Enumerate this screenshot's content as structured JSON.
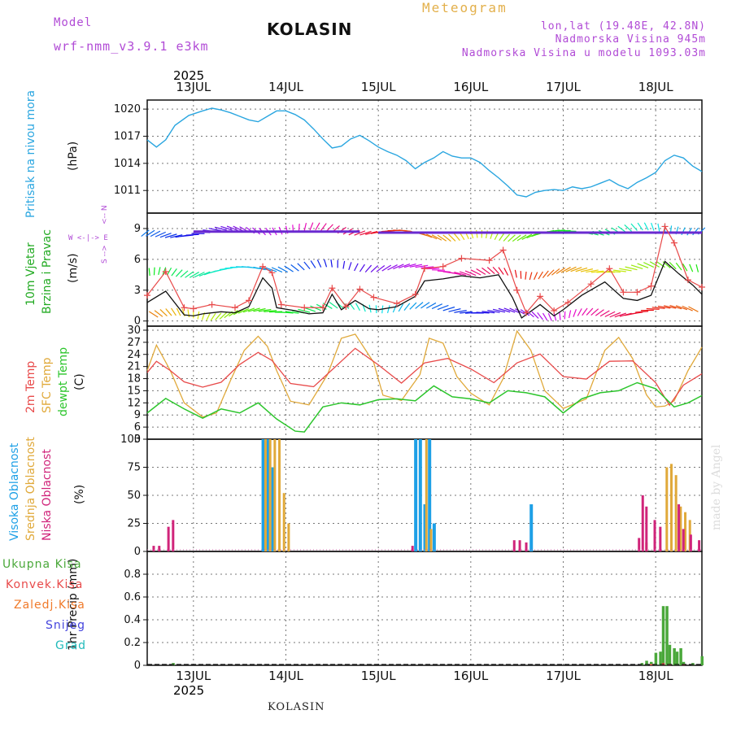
{
  "header": {
    "model_label": "Model",
    "model_name": "wrf-nmm_v3.9.1 e3km",
    "station": "KOLASIN",
    "meteogram": "Meteogram",
    "lonlat": "lon,lat (19.48E, 42.8N)",
    "altitude": "Nadmorska Visina 945m",
    "model_altitude": "Nadmorska Visina u modelu 1093.03m",
    "year_top": "2025",
    "year_bottom": "2025",
    "footer_station": "KOLASIN",
    "credit": "made by Angel"
  },
  "colors": {
    "pressure": "#2aa6e0",
    "wind_label": "#22aa22",
    "gust": "#e84a4a",
    "temp2m": "#e84a4a",
    "sfc": "#e0a93a",
    "dewpt": "#2cc52c",
    "high_cloud": "#1ea0e6",
    "mid_cloud": "#e0a93a",
    "low_cloud": "#d0247a",
    "total_precip": "#4aa83a",
    "convective": "#e84a4a",
    "frozen": "#f07a2a",
    "snow": "#4444dd",
    "hail": "#22bbbb",
    "violet": "#b14bd6"
  },
  "chart_data": [
    {
      "type": "line",
      "title": "Pritisak na nivou mora",
      "ylabel": "(hPa)",
      "ylim": [
        1008.5,
        1021
      ],
      "yticks": [
        1011,
        1014,
        1017,
        1020
      ],
      "x_range_days": [
        12.5,
        18.5
      ],
      "x_tick_labels": [
        "13JUL",
        "14JUL",
        "15JUL",
        "16JUL",
        "17JUL",
        "18JUL"
      ],
      "series": [
        {
          "name": "pressure",
          "x": [
            12.5,
            12.6,
            12.7,
            12.8,
            12.95,
            13.1,
            13.2,
            13.3,
            13.4,
            13.5,
            13.6,
            13.7,
            13.8,
            13.9,
            14.0,
            14.1,
            14.2,
            14.3,
            14.4,
            14.5,
            14.6,
            14.7,
            14.8,
            14.9,
            15.0,
            15.1,
            15.2,
            15.3,
            15.4,
            15.5,
            15.6,
            15.7,
            15.8,
            15.9,
            16.0,
            16.1,
            16.2,
            16.3,
            16.4,
            16.5,
            16.6,
            16.7,
            16.8,
            16.9,
            17.0,
            17.1,
            17.2,
            17.3,
            17.4,
            17.5,
            17.6,
            17.7,
            17.8,
            17.9,
            18.0,
            18.1,
            18.2,
            18.3,
            18.4,
            18.5
          ],
          "values": [
            1016.6,
            1015.8,
            1016.6,
            1018.2,
            1019.3,
            1019.8,
            1020.1,
            1019.9,
            1019.6,
            1019.2,
            1018.8,
            1018.6,
            1019.2,
            1019.8,
            1019.8,
            1019.4,
            1018.8,
            1017.8,
            1016.7,
            1015.7,
            1015.9,
            1016.7,
            1017.1,
            1016.5,
            1015.8,
            1015.3,
            1014.9,
            1014.3,
            1013.4,
            1014.1,
            1014.6,
            1015.3,
            1014.8,
            1014.6,
            1014.6,
            1014.1,
            1013.2,
            1012.4,
            1011.5,
            1010.5,
            1010.3,
            1010.8,
            1011.0,
            1011.1,
            1011.0,
            1011.4,
            1011.2,
            1011.4,
            1011.8,
            1012.2,
            1011.6,
            1011.2,
            1011.9,
            1012.4,
            1013.0,
            1014.3,
            1014.9,
            1014.6,
            1013.7,
            1013.1
          ]
        }
      ]
    },
    {
      "type": "line",
      "title": "10m Vjetar Brzina i Pravac",
      "ylabel": "(m/s)",
      "ylim": [
        -0.5,
        10.5
      ],
      "yticks": [
        0,
        3,
        6,
        9
      ],
      "compass": {
        "north": "N",
        "south": "S",
        "west": "W",
        "east": "E"
      },
      "series": [
        {
          "name": "wind_speed",
          "x": [
            12.5,
            12.7,
            12.9,
            13.0,
            13.1,
            13.3,
            13.45,
            13.6,
            13.75,
            13.85,
            13.9,
            14.1,
            14.25,
            14.4,
            14.5,
            14.6,
            14.75,
            14.9,
            15.0,
            15.2,
            15.4,
            15.5,
            15.7,
            15.9,
            16.1,
            16.3,
            16.45,
            16.55,
            16.75,
            16.9,
            17.0,
            17.2,
            17.45,
            17.65,
            17.8,
            17.95,
            18.1,
            18.25,
            18.4,
            18.5
          ],
          "values": [
            1.8,
            2.9,
            0.6,
            0.5,
            0.7,
            0.9,
            0.8,
            1.4,
            4.2,
            3.2,
            1.3,
            1.0,
            0.7,
            0.8,
            2.6,
            1.1,
            2.0,
            1.2,
            1.1,
            1.4,
            2.4,
            3.9,
            4.1,
            4.4,
            4.2,
            4.5,
            2.3,
            0.3,
            1.6,
            0.5,
            1.1,
            2.5,
            3.8,
            2.2,
            2.0,
            2.5,
            5.8,
            4.6,
            3.5,
            2.6
          ]
        },
        {
          "name": "gust",
          "x": [
            12.5,
            12.7,
            12.9,
            13.0,
            13.2,
            13.45,
            13.6,
            13.75,
            13.85,
            13.95,
            14.2,
            14.4,
            14.5,
            14.65,
            14.8,
            14.95,
            15.2,
            15.4,
            15.5,
            15.7,
            15.9,
            16.2,
            16.35,
            16.5,
            16.6,
            16.75,
            16.9,
            17.05,
            17.3,
            17.5,
            17.65,
            17.8,
            17.95,
            18.1,
            18.2,
            18.35,
            18.5
          ],
          "values": [
            2.5,
            4.8,
            1.3,
            1.2,
            1.6,
            1.3,
            2.0,
            5.3,
            4.7,
            1.6,
            1.3,
            1.3,
            3.2,
            1.4,
            3.1,
            2.3,
            1.7,
            2.6,
            5.1,
            5.3,
            6.1,
            5.9,
            6.9,
            3.0,
            0.8,
            2.4,
            1.0,
            1.8,
            3.6,
            5.1,
            2.8,
            2.8,
            3.4,
            9.2,
            7.6,
            4.0,
            3.3
          ]
        }
      ]
    },
    {
      "type": "line",
      "title": "2m Temp / SFC Temp / dewpt Temp",
      "ylabel": "(C)",
      "ylim": [
        3,
        31
      ],
      "yticks": [
        3,
        6,
        9,
        12,
        15,
        18,
        21,
        24,
        27,
        30
      ],
      "series": [
        {
          "name": "2m Temp",
          "x": [
            12.5,
            12.6,
            12.75,
            12.9,
            13.1,
            13.3,
            13.5,
            13.7,
            13.85,
            14.05,
            14.3,
            14.5,
            14.75,
            15.0,
            15.25,
            15.5,
            15.75,
            16.0,
            16.25,
            16.5,
            16.75,
            17.0,
            17.25,
            17.5,
            17.75,
            18.0,
            18.15,
            18.3,
            18.5
          ],
          "values": [
            19.5,
            22.3,
            20.0,
            17.2,
            15.9,
            17.1,
            21.5,
            24.5,
            22.5,
            16.8,
            16.0,
            20.2,
            25.5,
            21.4,
            16.9,
            21.9,
            23.0,
            20.4,
            17.0,
            21.9,
            24.1,
            18.5,
            17.9,
            22.3,
            22.4,
            17.0,
            11.4,
            16.4,
            19.2
          ]
        },
        {
          "name": "SFC Temp",
          "x": [
            12.5,
            12.6,
            12.75,
            12.9,
            13.1,
            13.25,
            13.4,
            13.55,
            13.7,
            13.8,
            13.9,
            14.05,
            14.25,
            14.45,
            14.6,
            14.75,
            14.95,
            15.05,
            15.25,
            15.45,
            15.55,
            15.7,
            15.85,
            16.0,
            16.2,
            16.35,
            16.5,
            16.65,
            16.8,
            17.0,
            17.25,
            17.45,
            17.6,
            17.75,
            17.9,
            18.0,
            18.1,
            18.2,
            18.35,
            18.5
          ],
          "values": [
            20.0,
            26.3,
            20.0,
            12.0,
            8.5,
            9.5,
            17.5,
            25.0,
            28.5,
            26.0,
            20.0,
            12.4,
            11.5,
            19.0,
            28.0,
            29.0,
            22.0,
            13.9,
            12.6,
            19.0,
            28.0,
            26.8,
            18.5,
            14.4,
            11.5,
            18.0,
            29.8,
            25.0,
            15.0,
            10.6,
            13.0,
            25.0,
            28.2,
            23.0,
            14.0,
            11.0,
            11.2,
            12.5,
            20.0,
            25.8
          ]
        },
        {
          "name": "dewpt Temp",
          "x": [
            12.5,
            12.7,
            12.9,
            13.1,
            13.3,
            13.5,
            13.7,
            13.9,
            14.1,
            14.2,
            14.4,
            14.6,
            14.8,
            15.0,
            15.2,
            15.4,
            15.6,
            15.8,
            16.0,
            16.2,
            16.4,
            16.6,
            16.8,
            17.0,
            17.2,
            17.4,
            17.6,
            17.8,
            18.0,
            18.2,
            18.35,
            18.5
          ],
          "values": [
            9.5,
            13.1,
            10.5,
            8.2,
            10.5,
            9.5,
            12.0,
            8.0,
            5.0,
            4.8,
            11.0,
            12.0,
            11.5,
            12.8,
            13.0,
            12.5,
            16.2,
            13.5,
            13.0,
            12.0,
            15.0,
            14.5,
            13.5,
            9.5,
            13.0,
            14.5,
            15.0,
            17.0,
            15.5,
            11.0,
            12.0,
            13.8
          ]
        }
      ]
    },
    {
      "type": "bar",
      "title": "Visoka / Srednja / Niska Oblacnost",
      "ylabel": "(%)",
      "ylim": [
        0,
        100
      ],
      "yticks": [
        0,
        25,
        50,
        75,
        100
      ],
      "series": [
        {
          "name": "Visoka Oblacnost",
          "x": [
            13.75,
            13.8,
            13.85,
            15.4,
            15.45,
            15.5,
            15.55,
            15.6,
            16.65
          ],
          "values": [
            100,
            100,
            75,
            100,
            100,
            42,
            100,
            25,
            42
          ]
        },
        {
          "name": "Srednja Oblacnost",
          "x": [
            13.78,
            13.83,
            13.88,
            13.93,
            13.98,
            14.03,
            15.52,
            15.57,
            17.9,
            18.12,
            18.17,
            18.22,
            18.27,
            18.32,
            18.37
          ],
          "values": [
            100,
            100,
            100,
            100,
            52,
            25,
            100,
            20,
            8,
            75,
            78,
            68,
            40,
            35,
            28
          ]
        },
        {
          "name": "Niska Oblacnost",
          "x": [
            12.57,
            12.63,
            12.73,
            12.78,
            15.37,
            16.47,
            16.53,
            16.6,
            17.82,
            17.86,
            17.9,
            17.99,
            18.05,
            18.25,
            18.3,
            18.38,
            18.47
          ],
          "values": [
            5,
            5,
            22,
            28,
            5,
            10,
            10,
            8,
            12,
            50,
            40,
            28,
            22,
            42,
            20,
            15,
            10
          ]
        }
      ]
    },
    {
      "type": "bar",
      "title": "1hr Precip",
      "ylabel": "1hr Precip (mm)",
      "ylim": [
        0,
        1.0
      ],
      "yticks": [
        0,
        0.2,
        0.4,
        0.6,
        0.8
      ],
      "x_tick_labels": [
        "13JUL",
        "14JUL",
        "15JUL",
        "16JUL",
        "17JUL",
        "18JUL"
      ],
      "legend": [
        "Ukupna Kisa",
        "Konvek.Kisa",
        "Zaledj.Kisa",
        "Snijeg",
        "Grad"
      ],
      "series": [
        {
          "name": "Ukupna Kisa",
          "x": [
            12.78,
            17.85,
            17.9,
            17.95,
            18.0,
            18.05,
            18.08,
            18.12,
            18.15,
            18.2,
            18.23,
            18.27,
            18.3,
            18.4,
            18.5
          ],
          "values": [
            0.02,
            0.02,
            0.04,
            0.03,
            0.11,
            0.12,
            0.52,
            0.52,
            0.18,
            0.15,
            0.12,
            0.15,
            0.03,
            0.02,
            0.08
          ]
        },
        {
          "name": "Konvek.Kisa",
          "x": [
            17.95,
            18.08,
            18.15,
            18.3
          ],
          "values": [
            0.01,
            0.02,
            0.01,
            0.01
          ]
        }
      ]
    }
  ]
}
